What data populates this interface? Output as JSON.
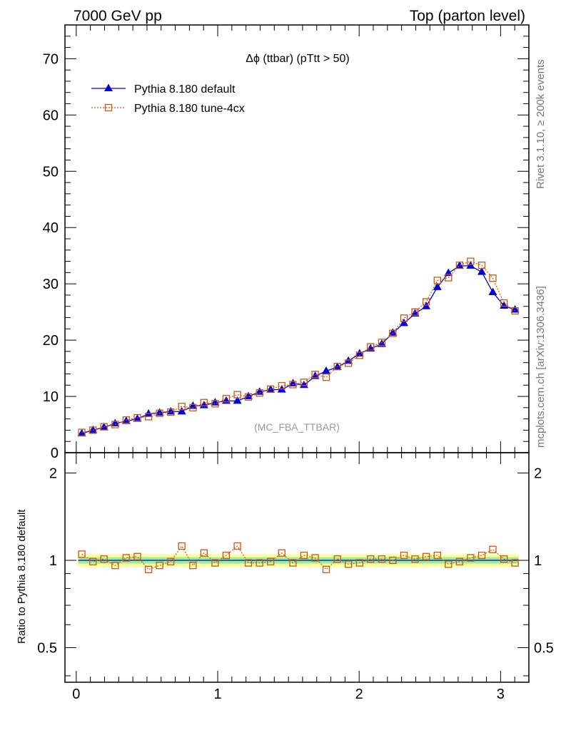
{
  "header": {
    "left": "7000 GeV pp",
    "right": "Top (parton level)"
  },
  "side": {
    "rivet": "Rivet 3.1.10, ≥ 200k events",
    "mcplots": "mcplots.cern.ch [arXiv:1306.3436]"
  },
  "chart_data": {
    "type": "line",
    "title": "Δϕ (ttbar) (pTtt > 50)",
    "watermark": "(MC_FBA_TTBAR)",
    "xlim": [
      -0.08,
      3.2
    ],
    "x_ticks": [
      0,
      1,
      2,
      3
    ],
    "top": {
      "ylim": [
        0,
        76
      ],
      "y_ticks": [
        0,
        10,
        20,
        30,
        40,
        50,
        60,
        70
      ],
      "legend_position": "top-left"
    },
    "ratio": {
      "ylabel": "Ratio to Pythia 8.180 default",
      "scale": "log",
      "ylim": [
        0.38,
        2.35
      ],
      "y_ticks": [
        0.5,
        1,
        2
      ],
      "band_inner": [
        0.975,
        1.025
      ],
      "band_outer": [
        0.95,
        1.05
      ]
    },
    "x": [
      0.039,
      0.118,
      0.196,
      0.275,
      0.353,
      0.432,
      0.511,
      0.589,
      0.668,
      0.746,
      0.825,
      0.903,
      0.982,
      1.06,
      1.139,
      1.217,
      1.296,
      1.374,
      1.453,
      1.532,
      1.61,
      1.689,
      1.767,
      1.846,
      1.924,
      2.003,
      2.081,
      2.16,
      2.238,
      2.317,
      2.395,
      2.474,
      2.553,
      2.631,
      2.71,
      2.788,
      2.867,
      2.945,
      3.024,
      3.102
    ],
    "series": [
      {
        "name": "Pythia 8.180 default",
        "color": "#0000dd",
        "marker": "triangle",
        "values": [
          3.4,
          4.0,
          4.5,
          5.2,
          5.6,
          6.0,
          6.9,
          7.1,
          7.3,
          7.3,
          8.3,
          8.4,
          8.9,
          9.2,
          9.2,
          10.0,
          10.8,
          11.2,
          11.2,
          12.3,
          12.0,
          13.6,
          14.5,
          15.2,
          16.3,
          17.6,
          18.5,
          19.3,
          21.3,
          23.0,
          24.7,
          26.0,
          29.4,
          31.9,
          33.2,
          33.2,
          32.1,
          28.5,
          26.1,
          25.4
        ]
      },
      {
        "name": "Pythia 8.180 tune-4cx",
        "color": "#cc5511",
        "marker": "open-square",
        "values": [
          3.6,
          4.0,
          4.6,
          5.0,
          5.8,
          6.2,
          6.4,
          7.0,
          7.2,
          8.2,
          8.0,
          8.9,
          8.7,
          9.6,
          10.3,
          9.9,
          10.6,
          11.3,
          11.9,
          12.1,
          12.5,
          13.9,
          13.4,
          15.3,
          15.9,
          17.3,
          18.8,
          19.6,
          21.2,
          23.9,
          25.0,
          26.8,
          30.6,
          31.1,
          33.3,
          34.0,
          33.3,
          31.0,
          26.6,
          25.2
        ]
      }
    ],
    "ratio_values": [
      1.05,
      0.99,
      1.01,
      0.96,
      1.02,
      1.03,
      0.93,
      0.96,
      0.99,
      1.12,
      0.96,
      1.06,
      0.98,
      1.04,
      1.12,
      0.98,
      0.98,
      0.99,
      1.06,
      0.98,
      1.04,
      1.02,
      0.93,
      1.01,
      0.97,
      0.98,
      1.01,
      1.01,
      1.0,
      1.04,
      1.01,
      1.03,
      1.04,
      0.97,
      0.99,
      1.02,
      1.04,
      1.09,
      1.01,
      0.98
    ]
  }
}
